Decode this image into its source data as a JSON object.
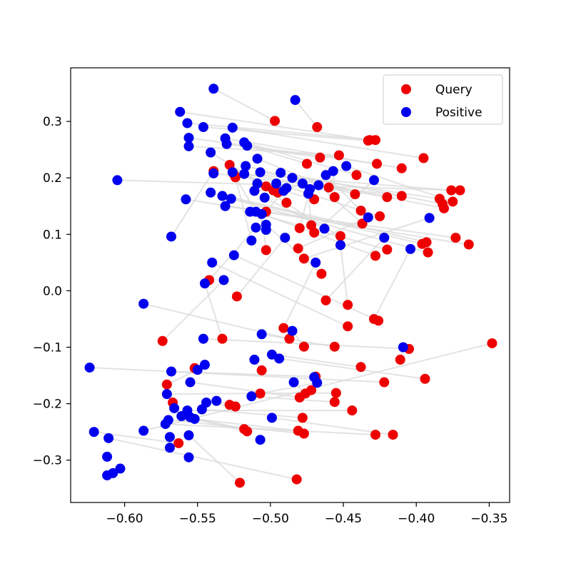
{
  "chart_data": {
    "type": "scatter",
    "title": "",
    "xlabel": "",
    "ylabel": "",
    "xlim": [
      -0.637,
      -0.336
    ],
    "ylim": [
      -0.375,
      0.395
    ],
    "xticks": [
      -0.6,
      -0.55,
      -0.5,
      -0.45,
      -0.4,
      -0.35
    ],
    "xtick_labels": [
      "−0.60",
      "−0.55",
      "−0.50",
      "−0.45",
      "−0.40",
      "−0.35"
    ],
    "yticks": [
      -0.3,
      -0.2,
      -0.1,
      0.0,
      0.1,
      0.2,
      0.3
    ],
    "ytick_labels": [
      "−0.3",
      "−0.2",
      "−0.1",
      "0.0",
      "0.1",
      "0.2",
      "0.3"
    ],
    "grid": false,
    "legend_position": "top-right",
    "link_color": "#d9d9d9",
    "series": [
      {
        "name": "Query",
        "color": "#ee0000",
        "points": [
          [
            -0.497,
            0.301
          ],
          [
            -0.468,
            0.29
          ],
          [
            -0.432,
            0.267
          ],
          [
            -0.428,
            0.267
          ],
          [
            -0.433,
            0.266
          ],
          [
            -0.395,
            0.235
          ],
          [
            -0.427,
            0.225
          ],
          [
            -0.41,
            0.217
          ],
          [
            -0.466,
            0.236
          ],
          [
            -0.453,
            0.24
          ],
          [
            -0.475,
            0.225
          ],
          [
            -0.441,
            0.205
          ],
          [
            -0.503,
            0.185
          ],
          [
            -0.46,
            0.183
          ],
          [
            -0.442,
            0.171
          ],
          [
            -0.42,
            0.166
          ],
          [
            -0.41,
            0.168
          ],
          [
            -0.376,
            0.178
          ],
          [
            -0.37,
            0.178
          ],
          [
            -0.384,
            0.163
          ],
          [
            -0.382,
            0.154
          ],
          [
            -0.381,
            0.146
          ],
          [
            -0.375,
            0.158
          ],
          [
            -0.456,
            0.166
          ],
          [
            -0.438,
            0.142
          ],
          [
            -0.47,
            0.162
          ],
          [
            -0.425,
            0.132
          ],
          [
            -0.503,
            0.14
          ],
          [
            -0.489,
            0.156
          ],
          [
            -0.495,
            0.174
          ],
          [
            -0.437,
            0.119
          ],
          [
            -0.48,
            0.111
          ],
          [
            -0.472,
            0.116
          ],
          [
            -0.47,
            0.103
          ],
          [
            -0.498,
            0.178
          ],
          [
            -0.452,
            0.097
          ],
          [
            -0.393,
            0.086
          ],
          [
            -0.396,
            0.083
          ],
          [
            -0.392,
            0.068
          ],
          [
            -0.373,
            0.094
          ],
          [
            -0.364,
            0.082
          ],
          [
            -0.428,
            0.062
          ],
          [
            -0.42,
            0.073
          ],
          [
            -0.503,
            0.072
          ],
          [
            -0.481,
            0.075
          ],
          [
            -0.477,
            0.057
          ],
          [
            -0.465,
            0.03
          ],
          [
            -0.542,
            0.019
          ],
          [
            -0.525,
            0.206
          ],
          [
            -0.528,
            0.223
          ],
          [
            -0.539,
            0.212
          ],
          [
            -0.524,
            0.201
          ],
          [
            -0.523,
            -0.01
          ],
          [
            -0.462,
            -0.017
          ],
          [
            -0.447,
            -0.025
          ],
          [
            -0.429,
            -0.05
          ],
          [
            -0.426,
            -0.053
          ],
          [
            -0.447,
            -0.063
          ],
          [
            -0.491,
            -0.066
          ],
          [
            -0.574,
            -0.089
          ],
          [
            -0.533,
            -0.085
          ],
          [
            -0.487,
            -0.085
          ],
          [
            -0.477,
            -0.099
          ],
          [
            -0.456,
            -0.099
          ],
          [
            -0.405,
            -0.103
          ],
          [
            -0.411,
            -0.122
          ],
          [
            -0.438,
            -0.135
          ],
          [
            -0.394,
            -0.156
          ],
          [
            -0.506,
            -0.141
          ],
          [
            -0.552,
            -0.137
          ],
          [
            -0.571,
            -0.166
          ],
          [
            -0.469,
            -0.152
          ],
          [
            -0.422,
            -0.162
          ],
          [
            -0.472,
            -0.176
          ],
          [
            -0.476,
            -0.182
          ],
          [
            -0.48,
            -0.189
          ],
          [
            -0.507,
            -0.182
          ],
          [
            -0.455,
            -0.181
          ],
          [
            -0.456,
            -0.197
          ],
          [
            -0.528,
            -0.202
          ],
          [
            -0.524,
            -0.205
          ],
          [
            -0.567,
            -0.198
          ],
          [
            -0.444,
            -0.212
          ],
          [
            -0.478,
            -0.225
          ],
          [
            -0.518,
            -0.245
          ],
          [
            -0.516,
            -0.249
          ],
          [
            -0.481,
            -0.248
          ],
          [
            -0.477,
            -0.253
          ],
          [
            -0.428,
            -0.255
          ],
          [
            -0.416,
            -0.255
          ],
          [
            -0.563,
            -0.27
          ],
          [
            -0.348,
            -0.093
          ],
          [
            -0.482,
            -0.334
          ],
          [
            -0.521,
            -0.34
          ]
        ]
      },
      {
        "name": "Positive",
        "color": "#0000ee",
        "points": [
          [
            -0.539,
            0.358
          ],
          [
            -0.483,
            0.338
          ],
          [
            -0.562,
            0.317
          ],
          [
            -0.557,
            0.297
          ],
          [
            -0.546,
            0.29
          ],
          [
            -0.526,
            0.289
          ],
          [
            -0.556,
            0.271
          ],
          [
            -0.531,
            0.27
          ],
          [
            -0.53,
            0.26
          ],
          [
            -0.556,
            0.256
          ],
          [
            -0.516,
            0.257
          ],
          [
            -0.518,
            0.263
          ],
          [
            -0.541,
            0.245
          ],
          [
            -0.509,
            0.234
          ],
          [
            -0.517,
            0.221
          ],
          [
            -0.526,
            0.21
          ],
          [
            -0.539,
            0.208
          ],
          [
            -0.518,
            0.207
          ],
          [
            -0.605,
            0.196
          ],
          [
            -0.507,
            0.21
          ],
          [
            -0.493,
            0.209
          ],
          [
            -0.485,
            0.2
          ],
          [
            -0.448,
            0.221
          ],
          [
            -0.457,
            0.212
          ],
          [
            -0.462,
            0.205
          ],
          [
            -0.509,
            0.19
          ],
          [
            -0.496,
            0.19
          ],
          [
            -0.489,
            0.182
          ],
          [
            -0.491,
            0.177
          ],
          [
            -0.478,
            0.19
          ],
          [
            -0.467,
            0.187
          ],
          [
            -0.473,
            0.18
          ],
          [
            -0.474,
            0.172
          ],
          [
            -0.429,
            0.196
          ],
          [
            -0.511,
            0.177
          ],
          [
            -0.504,
            0.165
          ],
          [
            -0.541,
            0.174
          ],
          [
            -0.533,
            0.168
          ],
          [
            -0.527,
            0.163
          ],
          [
            -0.531,
            0.15
          ],
          [
            -0.558,
            0.162
          ],
          [
            -0.51,
            0.14
          ],
          [
            -0.514,
            0.14
          ],
          [
            -0.506,
            0.136
          ],
          [
            -0.433,
            0.13
          ],
          [
            -0.391,
            0.129
          ],
          [
            -0.503,
            0.117
          ],
          [
            -0.51,
            0.112
          ],
          [
            -0.503,
            0.108
          ],
          [
            -0.463,
            0.11
          ],
          [
            -0.568,
            0.096
          ],
          [
            -0.513,
            0.089
          ],
          [
            -0.49,
            0.094
          ],
          [
            -0.422,
            0.094
          ],
          [
            -0.452,
            0.081
          ],
          [
            -0.404,
            0.074
          ],
          [
            -0.525,
            0.063
          ],
          [
            -0.54,
            0.05
          ],
          [
            -0.469,
            0.05
          ],
          [
            -0.532,
            0.019
          ],
          [
            -0.545,
            0.013
          ],
          [
            -0.587,
            -0.023
          ],
          [
            -0.485,
            -0.071
          ],
          [
            -0.506,
            -0.077
          ],
          [
            -0.546,
            -0.085
          ],
          [
            -0.409,
            -0.1
          ],
          [
            -0.499,
            -0.113
          ],
          [
            -0.494,
            -0.12
          ],
          [
            -0.511,
            -0.122
          ],
          [
            -0.545,
            -0.131
          ],
          [
            -0.55,
            -0.14
          ],
          [
            -0.568,
            -0.143
          ],
          [
            -0.624,
            -0.136
          ],
          [
            -0.47,
            -0.153
          ],
          [
            -0.484,
            -0.162
          ],
          [
            -0.555,
            -0.162
          ],
          [
            -0.468,
            -0.163
          ],
          [
            -0.571,
            -0.183
          ],
          [
            -0.513,
            -0.187
          ],
          [
            -0.537,
            -0.195
          ],
          [
            -0.544,
            -0.198
          ],
          [
            -0.566,
            -0.208
          ],
          [
            -0.557,
            -0.212
          ],
          [
            -0.547,
            -0.21
          ],
          [
            -0.555,
            -0.224
          ],
          [
            -0.561,
            -0.222
          ],
          [
            -0.552,
            -0.227
          ],
          [
            -0.57,
            -0.229
          ],
          [
            -0.572,
            -0.236
          ],
          [
            -0.499,
            -0.225
          ],
          [
            -0.621,
            -0.25
          ],
          [
            -0.587,
            -0.248
          ],
          [
            -0.611,
            -0.261
          ],
          [
            -0.556,
            -0.256
          ],
          [
            -0.569,
            -0.259
          ],
          [
            -0.507,
            -0.264
          ],
          [
            -0.569,
            -0.278
          ],
          [
            -0.612,
            -0.294
          ],
          [
            -0.556,
            -0.295
          ],
          [
            -0.603,
            -0.315
          ],
          [
            -0.608,
            -0.323
          ],
          [
            -0.612,
            -0.327
          ]
        ]
      }
    ]
  },
  "legend": {
    "query_label": "Query",
    "positive_label": "Positive"
  }
}
